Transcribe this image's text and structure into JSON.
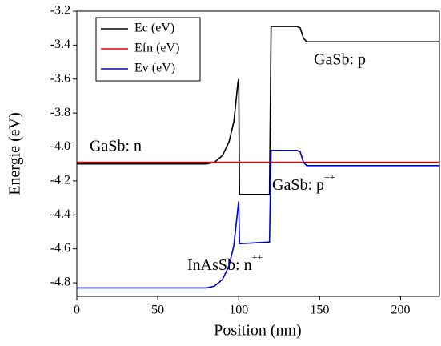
{
  "chart_data": {
    "type": "line",
    "x_label": "Position (nm)",
    "y_label": "Energie (eV)",
    "x": [
      0,
      80,
      85,
      90,
      94,
      97,
      99.5,
      100,
      100.5,
      119,
      120,
      136,
      138,
      140,
      142,
      224
    ],
    "series": [
      {
        "name": "Ec (eV)",
        "color": "#000000",
        "values": [
          -4.1,
          -4.1,
          -4.09,
          -4.05,
          -3.97,
          -3.85,
          -3.62,
          -3.6,
          -4.28,
          -4.28,
          -3.29,
          -3.29,
          -3.3,
          -3.36,
          -3.38,
          -3.38
        ]
      },
      {
        "name": "Efn (eV)",
        "color": "#e00000",
        "values": [
          -4.09,
          -4.09,
          -4.09,
          -4.09,
          -4.09,
          -4.09,
          -4.09,
          -4.09,
          -4.09,
          -4.09,
          -4.09,
          -4.09,
          -4.09,
          -4.09,
          -4.09,
          -4.09
        ]
      },
      {
        "name": "Ev (eV)",
        "color": "#0000e0",
        "values": [
          -4.83,
          -4.83,
          -4.82,
          -4.78,
          -4.7,
          -4.58,
          -4.36,
          -4.32,
          -4.57,
          -4.56,
          -4.02,
          -4.02,
          -4.03,
          -4.09,
          -4.11,
          -4.11
        ]
      }
    ],
    "xlim": [
      0,
      224
    ],
    "ylim": [
      -4.88,
      -3.2
    ],
    "xticks": [
      0,
      50,
      100,
      150,
      200
    ],
    "yticks": [
      -3.2,
      -3.4,
      -3.6,
      -3.8,
      {
        "value": -4,
        "label": "-4.0"
      },
      -4.2,
      -4.4,
      -4.6,
      -4.8
    ],
    "legend": "upper left",
    "annotations": [
      {
        "text": "GaSb: n"
      },
      {
        "text": "GaSb: p"
      },
      {
        "text": "GaSb: p",
        "sup": "++"
      },
      {
        "text": "InAsSb: n",
        "sup": "++"
      }
    ]
  }
}
